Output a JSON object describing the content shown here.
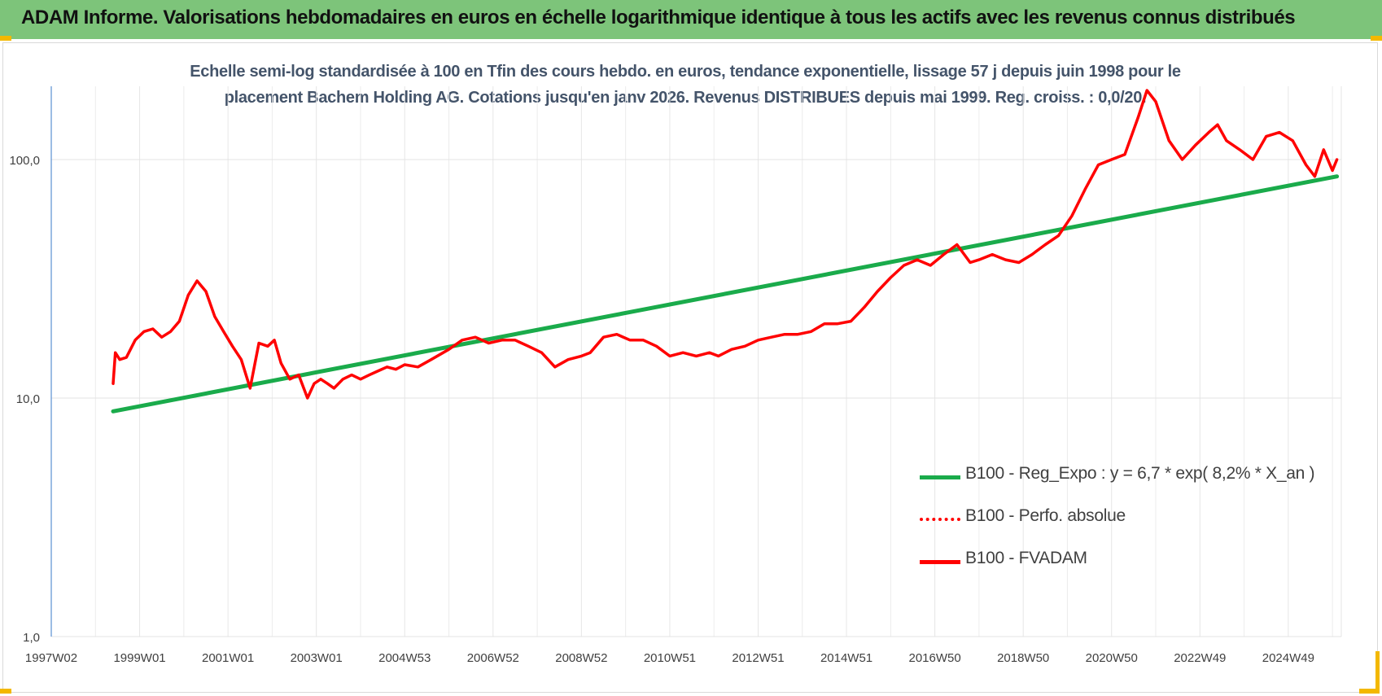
{
  "header": {
    "title": "ADAM Informe. Valorisations hebdomadaires en euros en échelle logarithmique identique à tous les actifs avec les revenus connus distribués"
  },
  "chart_data": {
    "type": "line",
    "title": "",
    "subtitle_lines": [
      "Echelle semi-log standardisée à 100 en Tfin des cours hebdo. en euros, tendance exponentielle, lissage 57 j depuis juin 1998 pour le",
      "placement Bachem Holding AG. Cotations jusqu'en janv 2026. Revenus DISTRIBUES depuis mai 1999. Reg. croiss. : 0,0/20."
    ],
    "xlabel": "",
    "ylabel": "",
    "y_scale": "log",
    "ylim": [
      1,
      200
    ],
    "xlim": [
      1997.0,
      2026.2
    ],
    "grid": true,
    "y_ticks": [
      {
        "value": 1,
        "label": "1,0"
      },
      {
        "value": 10,
        "label": "10,0"
      },
      {
        "value": 100,
        "label": "100,0"
      }
    ],
    "x_ticks": [
      {
        "value": 1997.0,
        "label": "1997W02"
      },
      {
        "value": 1999.0,
        "label": "1999W01"
      },
      {
        "value": 2001.0,
        "label": "2001W01"
      },
      {
        "value": 2003.0,
        "label": "2003W01"
      },
      {
        "value": 2005.0,
        "label": "2004W53"
      },
      {
        "value": 2007.0,
        "label": "2006W52"
      },
      {
        "value": 2009.0,
        "label": "2008W52"
      },
      {
        "value": 2011.0,
        "label": "2010W51"
      },
      {
        "value": 2013.0,
        "label": "2012W51"
      },
      {
        "value": 2015.0,
        "label": "2014W51"
      },
      {
        "value": 2017.0,
        "label": "2016W50"
      },
      {
        "value": 2019.0,
        "label": "2018W50"
      },
      {
        "value": 2021.0,
        "label": "2020W50"
      },
      {
        "value": 2023.0,
        "label": "2022W49"
      },
      {
        "value": 2025.0,
        "label": "2024W49"
      }
    ],
    "legend_position": "right",
    "series": [
      {
        "name": "B100 - Reg_Expo : y = 6,7 * exp( 8,2% *  X_an )",
        "color": "#1aab4b",
        "style": "solid",
        "x": [
          1998.4,
          2026.1
        ],
        "y": [
          8.8,
          85
        ]
      },
      {
        "name": "B100 - Perfo. absolue",
        "color": "#ff0000",
        "style": "dotted",
        "x": [],
        "y": []
      },
      {
        "name": "B100 - FVADAM",
        "color": "#ff0000",
        "style": "solid",
        "x": [
          1998.4,
          1998.45,
          1998.55,
          1998.7,
          1998.9,
          1999.1,
          1999.3,
          1999.5,
          1999.7,
          1999.9,
          2000.1,
          2000.3,
          2000.5,
          2000.7,
          2000.9,
          2001.1,
          2001.3,
          2001.5,
          2001.7,
          2001.9,
          2002.05,
          2002.2,
          2002.4,
          2002.6,
          2002.8,
          2002.95,
          2003.1,
          2003.25,
          2003.4,
          2003.6,
          2003.8,
          2004.0,
          2004.2,
          2004.4,
          2004.6,
          2004.8,
          2005.0,
          2005.3,
          2005.6,
          2006.0,
          2006.3,
          2006.6,
          2006.9,
          2007.2,
          2007.5,
          2007.8,
          2008.1,
          2008.4,
          2008.7,
          2009.0,
          2009.2,
          2009.5,
          2009.8,
          2010.1,
          2010.4,
          2010.7,
          2011.0,
          2011.3,
          2011.6,
          2011.9,
          2012.1,
          2012.4,
          2012.7,
          2013.0,
          2013.3,
          2013.6,
          2013.9,
          2014.2,
          2014.5,
          2014.8,
          2015.1,
          2015.4,
          2015.7,
          2016.0,
          2016.3,
          2016.6,
          2016.9,
          2017.2,
          2017.5,
          2017.8,
          2018.0,
          2018.3,
          2018.6,
          2018.9,
          2019.2,
          2019.5,
          2019.8,
          2020.1,
          2020.4,
          2020.7,
          2021.0,
          2021.3,
          2021.6,
          2021.8,
          2022.0,
          2022.3,
          2022.6,
          2022.9,
          2023.2,
          2023.4,
          2023.6,
          2023.9,
          2024.2,
          2024.5,
          2024.8,
          2025.1,
          2025.4,
          2025.6,
          2025.8,
          2026.0,
          2026.1
        ],
        "y": [
          11.5,
          15.5,
          14.5,
          14.8,
          17.5,
          19.0,
          19.5,
          18.0,
          19.0,
          21.0,
          27.0,
          31.0,
          28.0,
          22.0,
          19.0,
          16.5,
          14.5,
          11.0,
          17.0,
          16.5,
          17.5,
          14.0,
          12.0,
          12.5,
          10.0,
          11.5,
          12.0,
          11.5,
          11.0,
          12.0,
          12.5,
          12.0,
          12.5,
          13.0,
          13.5,
          13.2,
          13.8,
          13.5,
          14.5,
          16.0,
          17.5,
          18.0,
          17.0,
          17.5,
          17.5,
          16.5,
          15.5,
          13.5,
          14.5,
          15.0,
          15.5,
          18.0,
          18.5,
          17.5,
          17.5,
          16.5,
          15.0,
          15.5,
          15.0,
          15.5,
          15.0,
          16.0,
          16.5,
          17.5,
          18.0,
          18.5,
          18.5,
          19.0,
          20.5,
          20.5,
          21.0,
          24.0,
          28.0,
          32.0,
          36.0,
          38.0,
          36.0,
          40.0,
          44.0,
          37.0,
          38.0,
          40.0,
          38.0,
          37.0,
          40.0,
          44.0,
          48.0,
          58.0,
          75.0,
          95.0,
          100.0,
          105.0,
          150.0,
          195.0,
          175.0,
          120.0,
          100.0,
          115.0,
          130.0,
          140.0,
          120.0,
          110.0,
          100.0,
          125.0,
          130.0,
          120.0,
          95.0,
          85.0,
          110.0,
          90.0,
          100.0
        ]
      }
    ]
  }
}
